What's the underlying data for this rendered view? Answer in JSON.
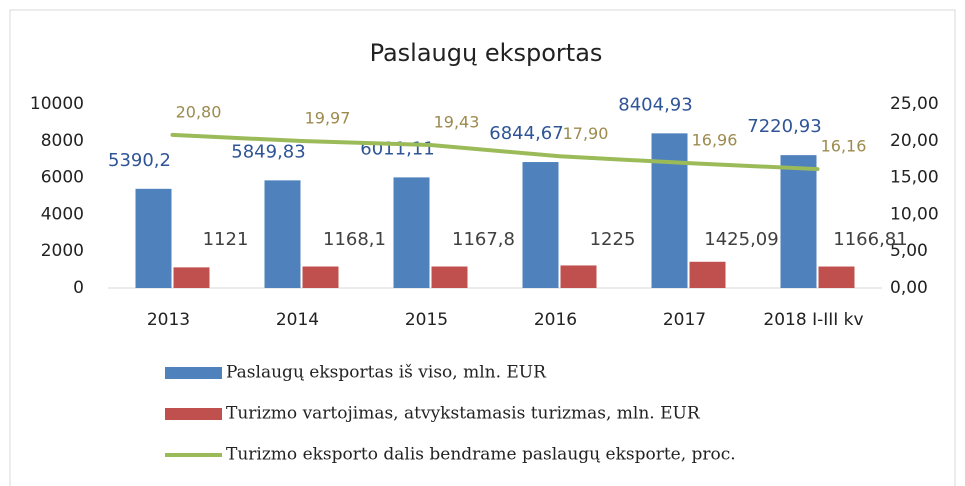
{
  "chart_data": {
    "type": "bar",
    "title": "Paslaugų eksportas",
    "categories": [
      "2013",
      "2014",
      "2015",
      "2016",
      "2017",
      "2018 I-III kv"
    ],
    "series": [
      {
        "name": "Paslaugų eksportas iš viso, mln. EUR",
        "type": "bar",
        "color": "#4f81bd",
        "values": [
          5390.2,
          5849.83,
          6011.11,
          6844.67,
          8404.93,
          7220.93
        ],
        "value_labels": [
          "5390,2",
          "5849,83",
          "6011,11",
          "6844,67",
          "8404,93",
          "7220,93"
        ]
      },
      {
        "name": "Turizmo vartojimas, atvykstamasis turizmas, mln. EUR",
        "type": "bar",
        "color": "#c0504d",
        "values": [
          1121,
          1168.1,
          1167.8,
          1225,
          1425.09,
          1166.81
        ],
        "value_labels": [
          "1121",
          "1168,1",
          "1167,8",
          "1225",
          "1425,09",
          "1166,81"
        ]
      },
      {
        "name": "Turizmo eksporto dalis bendrame paslaugų eksporte, proc.",
        "type": "line",
        "axis": "y2",
        "color": "#9bbb59",
        "values": [
          20.8,
          19.97,
          19.43,
          17.9,
          16.96,
          16.16
        ],
        "value_labels": [
          "20,80",
          "19,97",
          "19,43",
          "17,90",
          "16,96",
          "16,16"
        ]
      }
    ],
    "ylim": [
      0,
      10000
    ],
    "yticks": [
      0,
      2000,
      4000,
      6000,
      8000,
      10000
    ],
    "y2lim": [
      0,
      25
    ],
    "y2ticks": [
      {
        "value": 0,
        "label": "0,00"
      },
      {
        "value": 5,
        "label": "5,00"
      },
      {
        "value": 10,
        "label": "10,00"
      },
      {
        "value": 15,
        "label": "15,00"
      },
      {
        "value": 20,
        "label": "20,00"
      },
      {
        "value": 25,
        "label": "25,00"
      }
    ],
    "grid": false,
    "legend": "bottom"
  }
}
